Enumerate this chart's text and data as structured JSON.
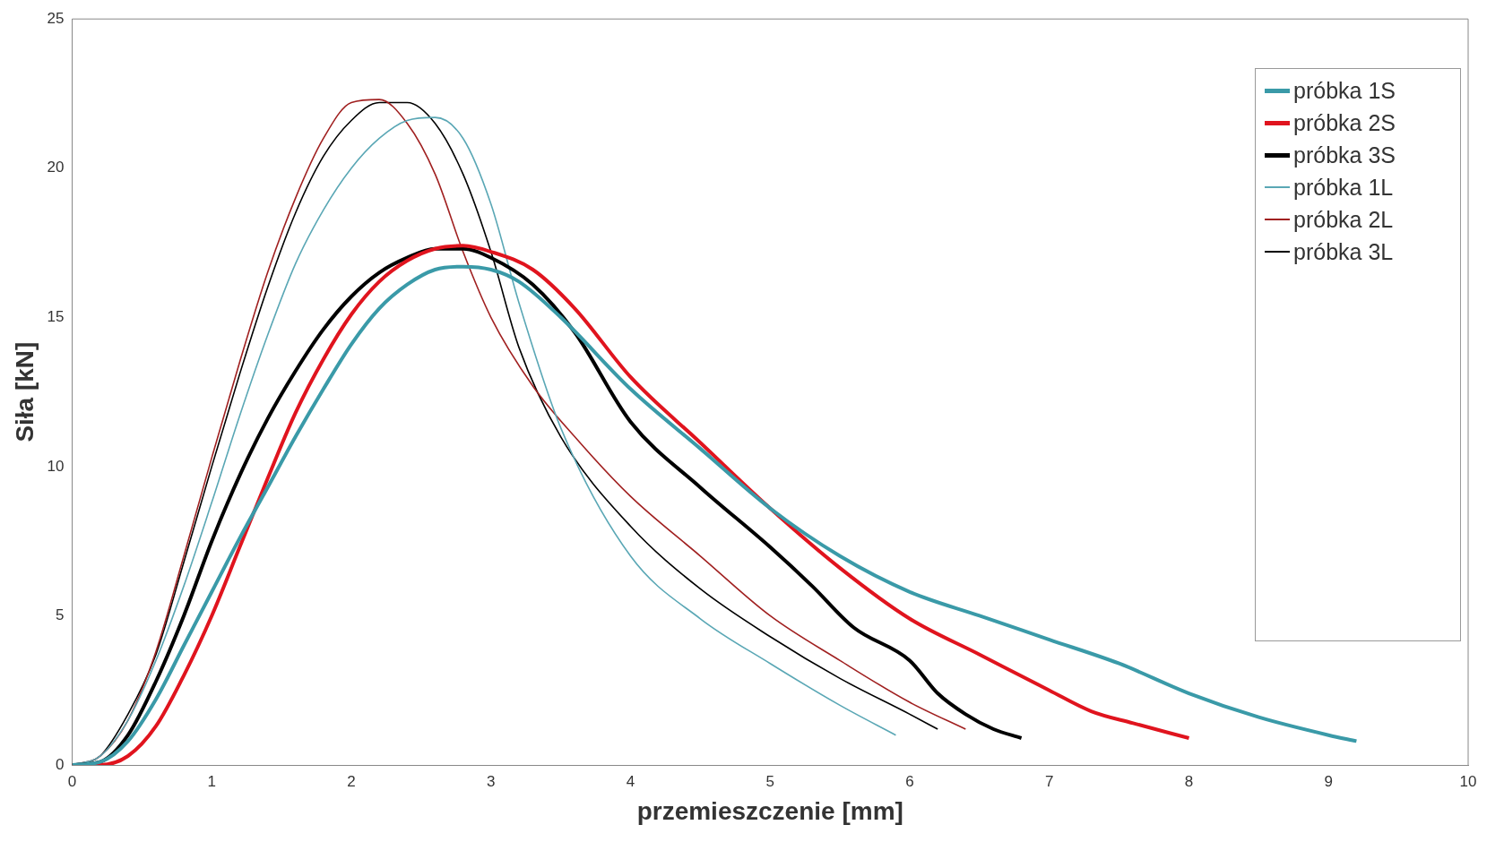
{
  "chart_data": {
    "type": "line",
    "xlabel": "przemieszczenie [mm]",
    "ylabel": "Siła [kN]",
    "xlim": [
      0,
      10
    ],
    "xticks": [
      0,
      1,
      2,
      3,
      4,
      5,
      6,
      7,
      8,
      9,
      10
    ],
    "ylim": [
      0,
      25
    ],
    "yticks": [
      0,
      5,
      10,
      15,
      20,
      25
    ],
    "grid": false,
    "legend": "top right",
    "marker": "none",
    "line_style": "solid",
    "series": [
      {
        "name": "próbka 1S",
        "color": "#3a9aa8",
        "x": [
          0,
          0.2,
          0.4,
          0.6,
          0.8,
          1,
          1.2,
          1.4,
          1.6,
          1.8,
          2,
          2.2,
          2.4,
          2.6,
          2.8,
          3,
          3.2,
          3.5,
          4,
          4.5,
          5,
          5.5,
          6,
          6.5,
          7,
          7.5,
          8,
          8.5,
          9,
          9.2
        ],
        "values": [
          0,
          0.1,
          0.8,
          2.2,
          4,
          5.8,
          7.6,
          9.3,
          11,
          12.6,
          14.1,
          15.3,
          16.1,
          16.6,
          16.7,
          16.6,
          16.2,
          15,
          12.6,
          10.6,
          8.6,
          7,
          5.8,
          5,
          4.2,
          3.4,
          2.4,
          1.6,
          1,
          0.8
        ]
      },
      {
        "name": "próbka 2S",
        "color": "#e0141e",
        "x": [
          0,
          0.2,
          0.4,
          0.6,
          0.8,
          1,
          1.2,
          1.4,
          1.6,
          1.8,
          2,
          2.2,
          2.4,
          2.6,
          2.8,
          3,
          3.3,
          3.6,
          4,
          4.5,
          5,
          5.5,
          6,
          6.5,
          7,
          7.3,
          7.6,
          8
        ],
        "values": [
          0,
          0,
          0.3,
          1.3,
          3,
          5,
          7.3,
          9.6,
          11.8,
          13.6,
          15.1,
          16.2,
          16.9,
          17.3,
          17.4,
          17.2,
          16.6,
          15.3,
          13,
          10.8,
          8.6,
          6.6,
          4.9,
          3.7,
          2.5,
          1.8,
          1.4,
          0.9
        ]
      },
      {
        "name": "próbka 3S",
        "color": "#000000",
        "x": [
          0,
          0.2,
          0.4,
          0.6,
          0.8,
          1,
          1.2,
          1.4,
          1.6,
          1.8,
          2,
          2.2,
          2.4,
          2.6,
          2.8,
          3,
          3.3,
          3.6,
          4,
          4.5,
          5,
          5.3,
          5.6,
          6,
          6.2,
          6.4,
          6.6,
          6.8
        ],
        "values": [
          0,
          0.1,
          1,
          2.8,
          5,
          7.5,
          9.7,
          11.6,
          13.2,
          14.6,
          15.7,
          16.5,
          17,
          17.3,
          17.3,
          17,
          16.1,
          14.5,
          11.5,
          9.3,
          7.3,
          6,
          4.6,
          3.5,
          2.4,
          1.7,
          1.2,
          0.9
        ]
      },
      {
        "name": "próbka 1L",
        "color": "#5aa7b5",
        "x": [
          0,
          0.2,
          0.4,
          0.6,
          0.8,
          1,
          1.2,
          1.4,
          1.6,
          1.8,
          2,
          2.2,
          2.4,
          2.6,
          2.8,
          3,
          3.2,
          3.5,
          4,
          4.5,
          5,
          5.5,
          5.9
        ],
        "values": [
          0,
          0.3,
          1.5,
          3.5,
          6,
          8.8,
          11.7,
          14.4,
          16.8,
          18.6,
          20,
          21,
          21.6,
          21.7,
          21,
          18.8,
          15.5,
          11.3,
          7,
          4.9,
          3.4,
          2,
          1
        ]
      },
      {
        "name": "próbka 2L",
        "color": "#a02020",
        "x": [
          0,
          0.2,
          0.4,
          0.6,
          0.8,
          1,
          1.2,
          1.4,
          1.6,
          1.8,
          2,
          2.2,
          2.4,
          2.6,
          2.8,
          3,
          3.3,
          3.6,
          4,
          4.5,
          5,
          5.5,
          6,
          6.4
        ],
        "values": [
          0,
          0.3,
          1.5,
          3.8,
          7,
          10.3,
          13.5,
          16.5,
          19,
          21,
          22.2,
          22.3,
          21.5,
          19.8,
          17.2,
          15,
          12.7,
          11,
          9,
          7,
          5,
          3.5,
          2.1,
          1.2
        ]
      },
      {
        "name": "próbka 3L",
        "color": "#000000",
        "x": [
          0,
          0.2,
          0.4,
          0.6,
          0.8,
          1,
          1.2,
          1.4,
          1.6,
          1.8,
          2,
          2.2,
          2.4,
          2.6,
          2.8,
          3,
          3.2,
          3.5,
          4,
          4.5,
          5,
          5.5,
          6,
          6.2
        ],
        "values": [
          0,
          0.3,
          1.7,
          3.7,
          6.8,
          10,
          13.1,
          16,
          18.5,
          20.4,
          21.6,
          22.2,
          22.2,
          21.5,
          19.8,
          17.2,
          14,
          11,
          8,
          5.9,
          4.3,
          2.9,
          1.7,
          1.2
        ]
      }
    ]
  }
}
